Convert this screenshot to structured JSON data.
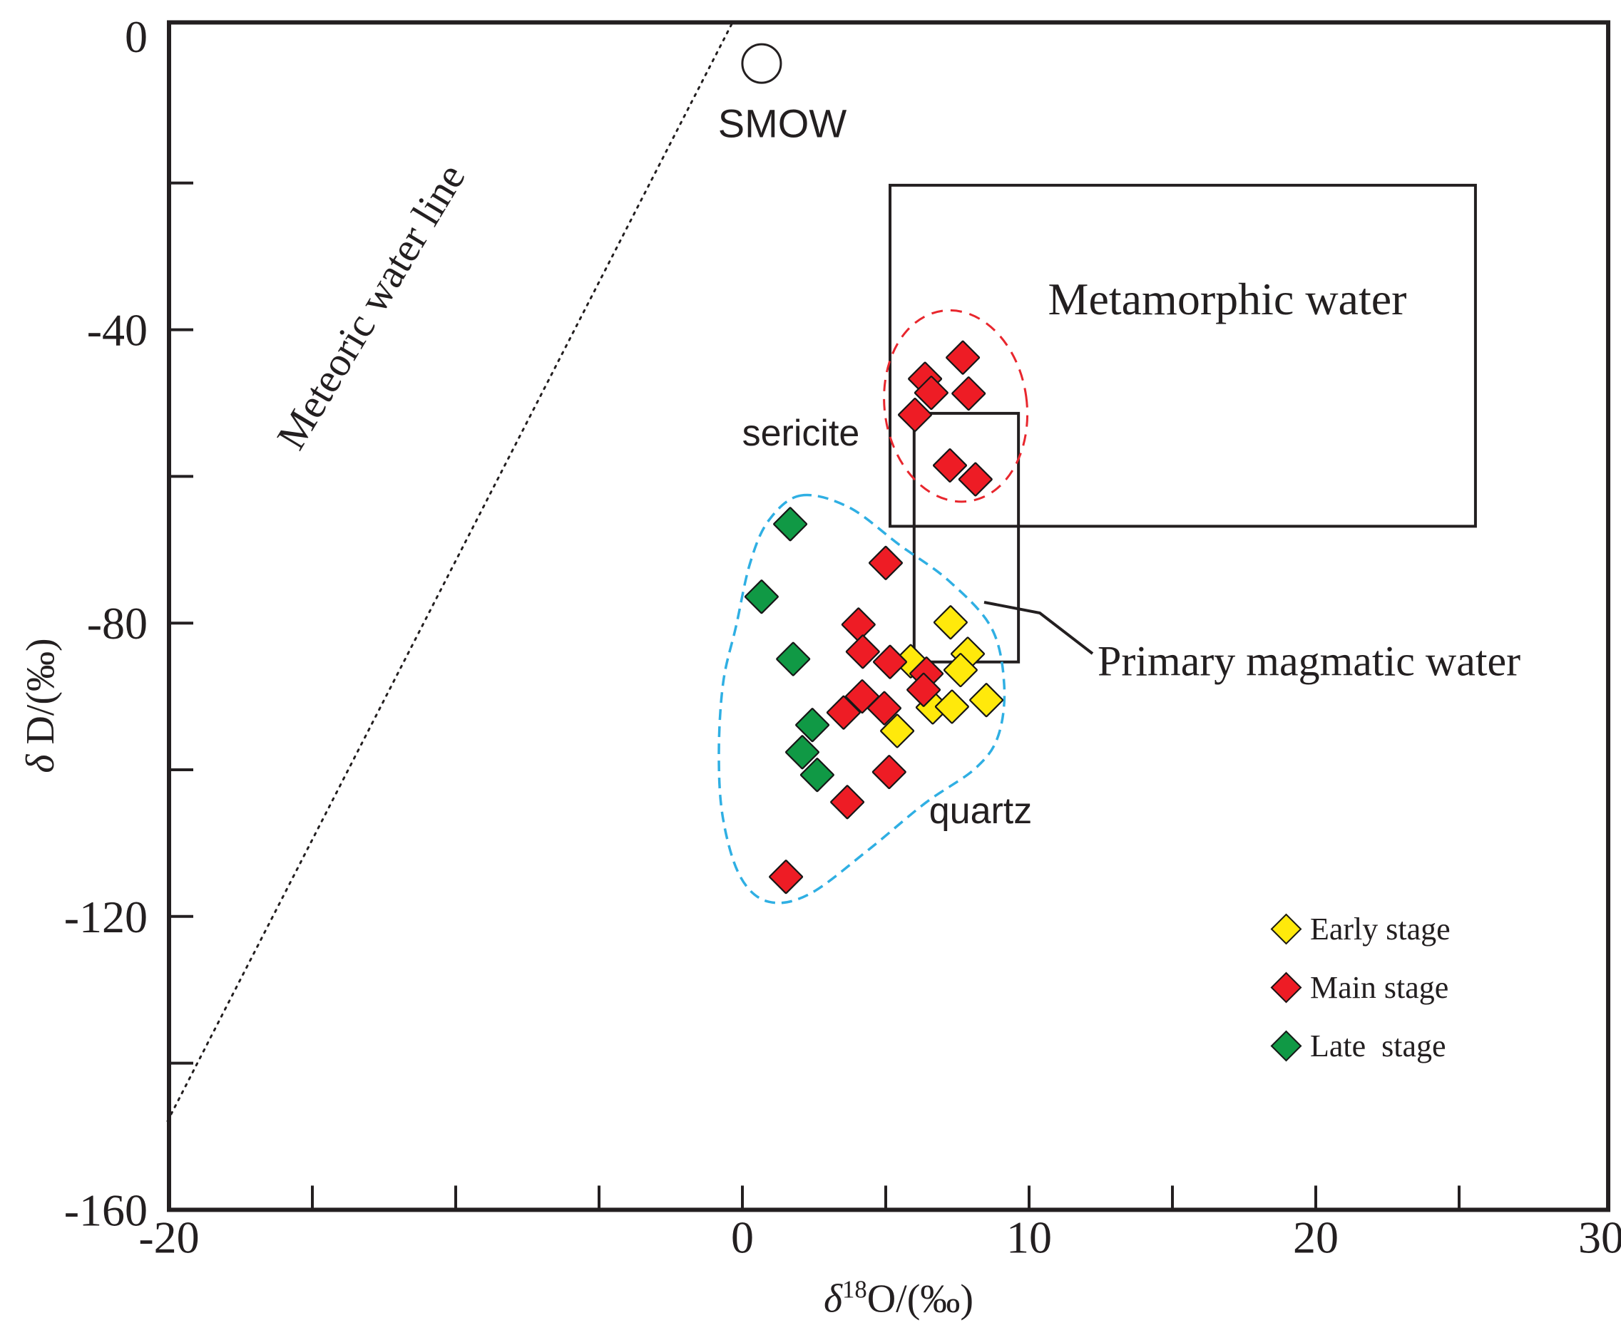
{
  "figure": {
    "background": "#ffffff",
    "line_color": "#231f20"
  },
  "chart_data": {
    "type": "scatter",
    "title": "",
    "xlabel_delta": "δ",
    "xlabel_sup": "18",
    "xlabel_rest": "O/(‰)",
    "ylabel_delta": "δ",
    "ylabel_rest": " D/(‰)",
    "xlim": [
      -20,
      30.2
    ],
    "ylim": [
      -160,
      1.9
    ],
    "grid": false,
    "x_tick_labels": [
      {
        "v": -20,
        "t": "-20"
      },
      {
        "v": 0,
        "t": "0"
      },
      {
        "v": 10,
        "t": "10"
      },
      {
        "v": 20,
        "t": "20"
      },
      {
        "v": 30,
        "t": "30"
      }
    ],
    "x_minor_ticks": [
      -15,
      -10,
      -5,
      0,
      5,
      10,
      15,
      20,
      25
    ],
    "y_tick_labels": [
      {
        "v": 0,
        "t": "0"
      },
      {
        "v": -40,
        "t": "-40"
      },
      {
        "v": -80,
        "t": "-80"
      },
      {
        "v": -120,
        "t": "-120"
      },
      {
        "v": -160,
        "t": "-160"
      }
    ],
    "y_minor_ticks": [
      -20,
      -40,
      -60,
      -80,
      -100,
      -120,
      -140
    ],
    "series": [
      {
        "name": "Early stage",
        "color": "#FFE90B",
        "points": [
          [
            7.26,
            -79.9
          ],
          [
            5.87,
            -85.2
          ],
          [
            7.86,
            -84.2
          ],
          [
            7.61,
            -86.4
          ],
          [
            6.64,
            -91.5
          ],
          [
            7.31,
            -91.4
          ],
          [
            8.51,
            -90.5
          ],
          [
            5.4,
            -94.7
          ]
        ]
      },
      {
        "name": "Main stage",
        "color": "#EE1C25",
        "points": [
          [
            7.69,
            -43.8
          ],
          [
            6.37,
            -46.7
          ],
          [
            6.59,
            -48.6
          ],
          [
            7.89,
            -48.7
          ],
          [
            6.02,
            -51.6
          ],
          [
            7.24,
            -58.5
          ],
          [
            8.13,
            -60.4
          ],
          [
            5.0,
            -71.8
          ],
          [
            4.05,
            -80.2
          ],
          [
            4.2,
            -83.9
          ],
          [
            5.15,
            -85.3
          ],
          [
            6.42,
            -86.9
          ],
          [
            6.32,
            -89.1
          ],
          [
            4.18,
            -90.0
          ],
          [
            4.95,
            -91.6
          ],
          [
            3.53,
            -92.2
          ],
          [
            5.12,
            -100.3
          ],
          [
            3.66,
            -104.4
          ],
          [
            1.52,
            -114.6
          ]
        ]
      },
      {
        "name": "Late  stage",
        "color": "#109945",
        "points": [
          [
            1.67,
            -66.5
          ],
          [
            0.67,
            -76.4
          ],
          [
            1.77,
            -84.9
          ],
          [
            2.44,
            -93.9
          ],
          [
            2.09,
            -97.6
          ],
          [
            2.61,
            -100.7
          ]
        ]
      }
    ],
    "legend": {
      "position": "bottom-right",
      "items": [
        {
          "label": "Early stage",
          "color": "#FFE90B"
        },
        {
          "label": "Main stage",
          "color": "#EE1C25"
        },
        {
          "label": "Late  stage",
          "color": "#109945"
        }
      ]
    },
    "annotations": {
      "smow": {
        "label": "SMOW",
        "x": 0.67,
        "y": -3.7,
        "radius_px": 27
      },
      "meteoric_line": {
        "label": "Meteoric water line",
        "x1": -20.05,
        "y1": -147.9,
        "x2": -0.35,
        "y2": 1.85
      },
      "metamorphic_box": {
        "label": "Metamorphic water",
        "x1": 5.15,
        "x2": 25.57,
        "y1": -66.8,
        "y2": -20.3
      },
      "primary_box": {
        "label": "Primary magmatic water",
        "x1": 5.99,
        "x2": 9.63,
        "y1": -85.3,
        "y2": -51.4
      },
      "sericite_field": {
        "label": "sericite",
        "outline_color": "#E8262D",
        "style": "dashed-ellipse",
        "cx": 7.44,
        "cy": -50.4,
        "rx_units": 2.48,
        "ry_units": 13.1,
        "tilt_deg": -8
      },
      "quartz_field": {
        "label": "quartz",
        "outline_color": "#2FAFE3",
        "style": "dashed-blob",
        "outline": [
          [
            2.04,
            -62.6
          ],
          [
            3.71,
            -64.2
          ],
          [
            5.5,
            -69.4
          ],
          [
            7.19,
            -74.2
          ],
          [
            8.68,
            -80.6
          ],
          [
            9.13,
            -88.3
          ],
          [
            8.93,
            -95.3
          ],
          [
            8.13,
            -99.8
          ],
          [
            6.39,
            -104.5
          ],
          [
            4.4,
            -110.9
          ],
          [
            2.36,
            -116.9
          ],
          [
            0.92,
            -118.0
          ],
          [
            -0.07,
            -114.6
          ],
          [
            -0.67,
            -106.8
          ],
          [
            -0.82,
            -97.9
          ],
          [
            -0.67,
            -88.1
          ],
          [
            -0.22,
            -80.4
          ],
          [
            0.27,
            -71.8
          ],
          [
            0.92,
            -66.0
          ]
        ]
      }
    }
  }
}
